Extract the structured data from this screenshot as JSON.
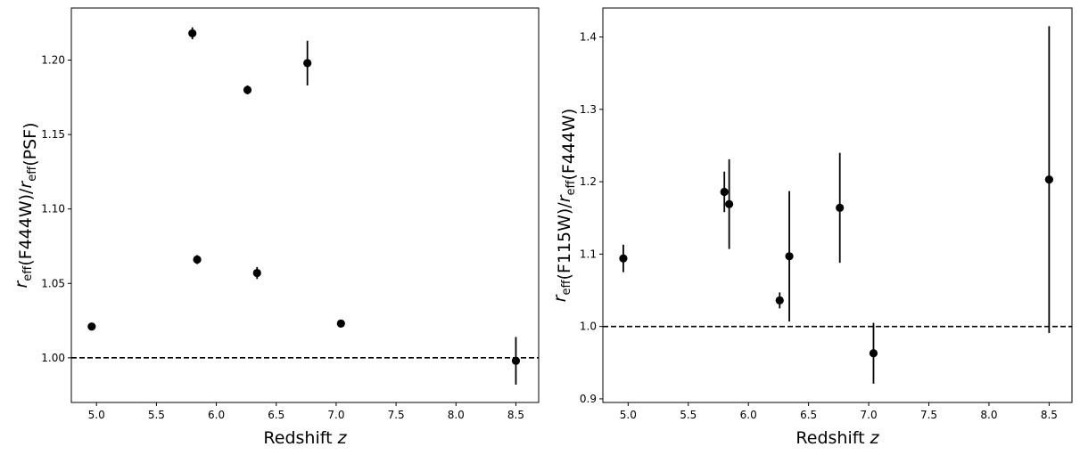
{
  "chart_data": [
    {
      "type": "scatter",
      "xlabel": "Redshift z",
      "ylabel": "r_eff(F444W)/r_eff(PSF)",
      "xlim": [
        4.79,
        8.69
      ],
      "ylim": [
        0.97,
        1.235
      ],
      "xticks": [
        5.0,
        5.5,
        6.0,
        6.5,
        7.0,
        7.5,
        8.0,
        8.5
      ],
      "xtick_labels": [
        "5.0",
        "5.5",
        "6.0",
        "6.5",
        "7.0",
        "7.5",
        "8.0",
        "8.5"
      ],
      "yticks": [
        1.0,
        1.05,
        1.1,
        1.15,
        1.2
      ],
      "ytick_labels": [
        "1.00",
        "1.05",
        "1.10",
        "1.15",
        "1.20"
      ],
      "reference_line": 1.0,
      "marker_color": "#000000",
      "points": [
        {
          "x": 4.96,
          "y": 1.021,
          "yerr": 0.0
        },
        {
          "x": 5.8,
          "y": 1.218,
          "yerr": 0.004
        },
        {
          "x": 5.84,
          "y": 1.066,
          "yerr": 0.003
        },
        {
          "x": 6.26,
          "y": 1.18,
          "yerr": 0.003
        },
        {
          "x": 6.34,
          "y": 1.057,
          "yerr": 0.004
        },
        {
          "x": 6.76,
          "y": 1.198,
          "yerr": 0.015
        },
        {
          "x": 7.04,
          "y": 1.023,
          "yerr": 0.0
        },
        {
          "x": 8.5,
          "y": 0.998,
          "yerr": 0.016
        }
      ]
    },
    {
      "type": "scatter",
      "xlabel": "Redshift z",
      "ylabel": "r_eff(F115W)/r_eff(F444W)",
      "xlim": [
        4.79,
        8.69
      ],
      "ylim": [
        0.895,
        1.44
      ],
      "xticks": [
        5.0,
        5.5,
        6.0,
        6.5,
        7.0,
        7.5,
        8.0,
        8.5
      ],
      "xtick_labels": [
        "5.0",
        "5.5",
        "6.0",
        "6.5",
        "7.0",
        "7.5",
        "8.0",
        "8.5"
      ],
      "yticks": [
        0.9,
        1.0,
        1.1,
        1.2,
        1.3,
        1.4
      ],
      "ytick_labels": [
        "0.9",
        "1.0",
        "1.1",
        "1.2",
        "1.3",
        "1.4"
      ],
      "reference_line": 1.0,
      "marker_color": "#000000",
      "points": [
        {
          "x": 4.96,
          "y": 1.094,
          "yerr": 0.019
        },
        {
          "x": 5.8,
          "y": 1.186,
          "yerr": 0.028
        },
        {
          "x": 5.84,
          "y": 1.169,
          "yerr": 0.062
        },
        {
          "x": 6.26,
          "y": 1.036,
          "yerr": 0.011
        },
        {
          "x": 6.34,
          "y": 1.097,
          "yerr": 0.09
        },
        {
          "x": 6.76,
          "y": 1.164,
          "yerr": 0.076
        },
        {
          "x": 7.04,
          "y": 0.963,
          "yerr": 0.042
        },
        {
          "x": 8.5,
          "y": 1.203,
          "yerr": 0.212
        }
      ]
    }
  ]
}
